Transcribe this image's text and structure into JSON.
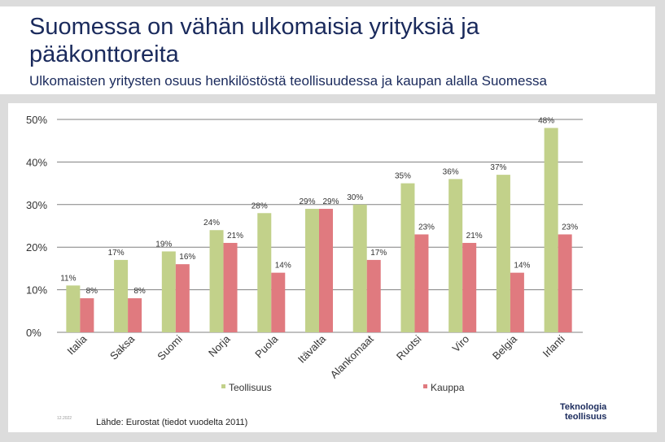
{
  "title": "Suomessa on vähän ulkomaisia yrityksiä ja pääkonttoreita",
  "subtitle": "Ulkomaisten yritysten osuus henkilöstöstä teollisuudessa ja kaupan alalla Suomessa",
  "source": "Lähde: Eurostat (tiedot vuodelta 2011)",
  "date": "12.2022",
  "logo": {
    "line1": "Teknologia",
    "line2": "teollisuus"
  },
  "colors": {
    "teollisuus": "#c2d18a",
    "kauppa": "#e07a7f",
    "grid": "#808080"
  },
  "chart_data": {
    "type": "bar",
    "title": "Ulkomaisten yritysten osuus henkilöstöstä teollisuudessa ja kaupan alalla Suomessa",
    "categories": [
      "Italia",
      "Saksa",
      "Suomi",
      "Norja",
      "Puola",
      "Itävalta",
      "Alankomaat",
      "Ruotsi",
      "Viro",
      "Belgia",
      "Irlanti"
    ],
    "series": [
      {
        "name": "Teollisuus",
        "values": [
          11,
          17,
          19,
          24,
          28,
          29,
          30,
          35,
          36,
          37,
          48
        ],
        "labels": [
          "11%",
          "17%",
          "19%",
          "24%",
          "28%",
          "29%",
          "30%",
          "35%",
          "36%",
          "37%",
          "48%"
        ]
      },
      {
        "name": "Kauppa",
        "values": [
          8,
          8,
          16,
          21,
          14,
          29,
          17,
          23,
          21,
          14,
          23
        ],
        "labels": [
          "8%",
          "8%",
          "16%",
          "21%",
          "14%",
          "29%",
          "17%",
          "23%",
          "21%",
          "14%",
          "23%"
        ]
      }
    ],
    "yticks": [
      "0%",
      "10%",
      "20%",
      "30%",
      "40%",
      "50%"
    ],
    "ylim": [
      0,
      50
    ],
    "legend": "bottom",
    "grid": true
  }
}
